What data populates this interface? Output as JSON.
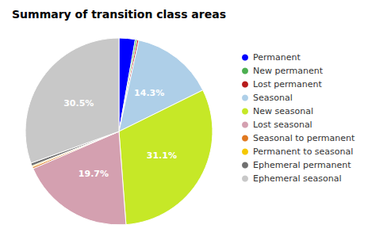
{
  "chart_data": {
    "type": "pie",
    "title": "Summary of transition class areas",
    "categories": [
      "Permanent",
      "New permanent",
      "Lost permanent",
      "Seasonal",
      "New seasonal",
      "Lost seasonal",
      "Seasonal to permanent",
      "Permanent to seasonal",
      "Ephemeral permanent",
      "Ephemeral seasonal"
    ],
    "values": [
      2.8,
      0.3,
      0.3,
      14.3,
      31.1,
      19.7,
      0.3,
      0.2,
      0.5,
      30.5
    ],
    "value_labels": [
      null,
      null,
      null,
      "14.3%",
      "31.1%",
      "19.7%",
      null,
      null,
      null,
      "30.5%"
    ],
    "data_labels": true,
    "colors": [
      "#0000ff",
      "#4caf50",
      "#b71c1c",
      "#aecfe8",
      "#c6e827",
      "#d4a0b0",
      "#e07820",
      "#f5c800",
      "#707070",
      "#c8c8c8"
    ],
    "legend": "right"
  }
}
